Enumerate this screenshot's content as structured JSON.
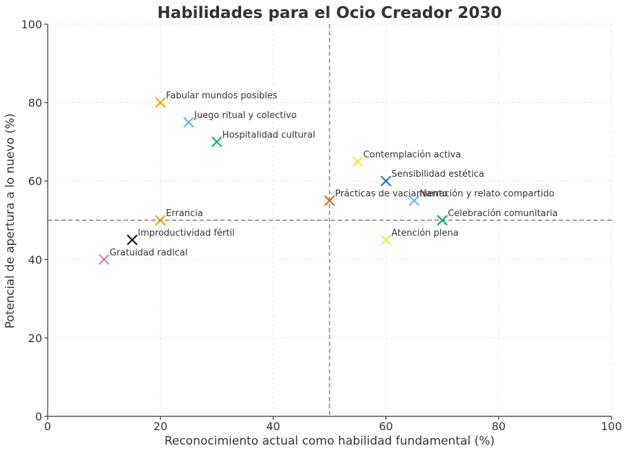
{
  "chart_data": {
    "type": "scatter",
    "title": "Habilidades para el Ocio Creador 2030",
    "xlabel": "Reconocimiento actual como habilidad fundamental (%)",
    "ylabel": "Potencial de apertura a lo nuevo (%)",
    "xlim": [
      0,
      100
    ],
    "ylim": [
      0,
      100
    ],
    "xticks": [
      0,
      20,
      40,
      60,
      80,
      100
    ],
    "yticks": [
      0,
      20,
      40,
      60,
      80,
      100
    ],
    "grid": true,
    "reference_lines": {
      "x": 50,
      "y": 50
    },
    "marker": "x",
    "points": [
      {
        "label": "Fabular mundos posibles",
        "x": 20,
        "y": 80,
        "color": "#E69F00"
      },
      {
        "label": "Juego ritual y colectivo",
        "x": 25,
        "y": 75,
        "color": "#56B4E9"
      },
      {
        "label": "Hospitalidad cultural",
        "x": 30,
        "y": 70,
        "color": "#009E73"
      },
      {
        "label": "Contemplación activa",
        "x": 55,
        "y": 65,
        "color": "#F0E442"
      },
      {
        "label": "Sensibilidad estética",
        "x": 60,
        "y": 60,
        "color": "#0072B2"
      },
      {
        "label": "Prácticas de vaciamiento",
        "x": 50,
        "y": 55,
        "color": "#D55E00"
      },
      {
        "label": "Narración y relato compartido",
        "x": 65,
        "y": 55,
        "color": "#56B4E9"
      },
      {
        "label": "Celebración comunitaria",
        "x": 70,
        "y": 50,
        "color": "#009E73"
      },
      {
        "label": "Errancia",
        "x": 20,
        "y": 50,
        "color": "#E69F00"
      },
      {
        "label": "Atención plena",
        "x": 60,
        "y": 45,
        "color": "#F0E442"
      },
      {
        "label": "Improductividad fértil",
        "x": 15,
        "y": 45,
        "color": "#000000"
      },
      {
        "label": "Gratuidad radical",
        "x": 10,
        "y": 40,
        "color": "#CC79A7"
      }
    ]
  }
}
